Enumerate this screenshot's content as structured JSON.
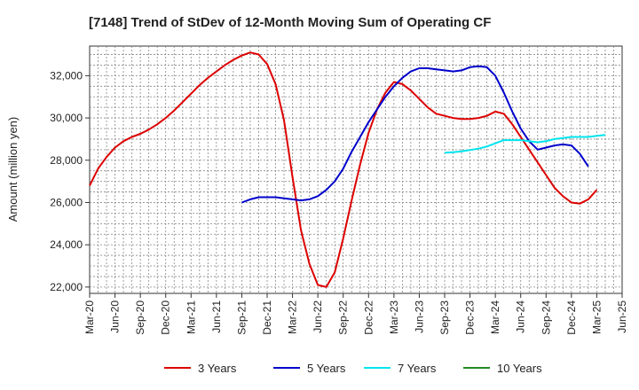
{
  "chart_data": {
    "type": "line",
    "title": "[7148]  Trend of StDev of 12-Month Moving Sum of Operating CF",
    "xlabel": "",
    "ylabel": "Amount (million yen)",
    "x_ticks": [
      "Mar-20",
      "Jun-20",
      "Sep-20",
      "Dec-20",
      "Mar-21",
      "Jun-21",
      "Sep-21",
      "Dec-21",
      "Mar-22",
      "Jun-22",
      "Sep-22",
      "Dec-22",
      "Mar-23",
      "Jun-23",
      "Sep-23",
      "Dec-23",
      "Mar-24",
      "Jun-24",
      "Sep-24",
      "Dec-24",
      "Mar-25",
      "Jun-25"
    ],
    "y_ticks": [
      22000,
      24000,
      26000,
      28000,
      30000,
      32000
    ],
    "ylim": [
      21700,
      33400
    ],
    "grid": true,
    "legend_position": "bottom",
    "series": [
      {
        "name": "3 Years",
        "color": "#dd0000",
        "start_index": 0,
        "values": [
          26800,
          27600,
          28150,
          28600,
          28900,
          29100,
          29250,
          29450,
          29700,
          30000,
          30350,
          30750,
          31150,
          31550,
          31900,
          32200,
          32500,
          32750,
          32950,
          33100,
          33000,
          32550,
          31600,
          29900,
          27200,
          24700,
          23100,
          22100,
          22000,
          22700,
          24300,
          26100,
          27800,
          29300,
          30400,
          31200,
          31700,
          31600,
          31300,
          30900,
          30500,
          30200,
          30100,
          30000,
          29950,
          29950,
          30000,
          30100,
          30300,
          30200,
          29700,
          29100,
          28500,
          27900,
          27300,
          26700,
          26300,
          26000,
          25950,
          26150,
          26600
        ]
      },
      {
        "name": "5 Years",
        "color": "#0000cc",
        "start_index": 18,
        "values": [
          26000,
          26150,
          26250,
          26250,
          26250,
          26200,
          26150,
          26100,
          26150,
          26300,
          26600,
          27000,
          27600,
          28400,
          29100,
          29800,
          30400,
          31000,
          31500,
          31900,
          32200,
          32350,
          32350,
          32300,
          32250,
          32200,
          32250,
          32400,
          32450,
          32400,
          32000,
          31200,
          30300,
          29500,
          28900,
          28500,
          28600,
          28700,
          28750,
          28700,
          28300,
          27700
        ]
      },
      {
        "name": "7 Years",
        "color": "#00e5ee",
        "start_index": 42,
        "values": [
          28350,
          28380,
          28420,
          28480,
          28550,
          28650,
          28800,
          28950,
          28950,
          28950,
          28900,
          28850,
          28900,
          29000,
          29050,
          29100,
          29100,
          29100,
          29150,
          29200
        ]
      },
      {
        "name": "10 Years",
        "color": "#228b22",
        "start_index": 0,
        "values": []
      }
    ]
  }
}
